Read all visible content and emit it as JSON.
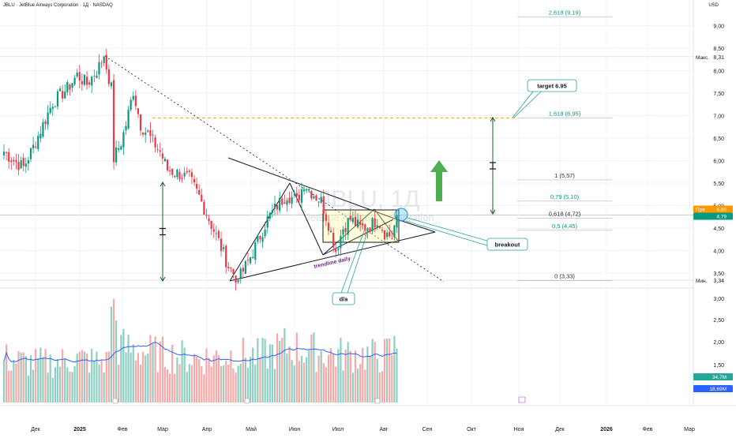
{
  "header": {
    "title": "JBLU · JetBlue Airways Corporation · 1Д · NASDAQ",
    "currency": "USD"
  },
  "watermark": {
    "symbol": "JBLU, 1Д",
    "name": "JetBlue Airways Corporation"
  },
  "price_scale": {
    "labels": [
      "9,00",
      "8,50",
      "8,00",
      "7,50",
      "7,00",
      "6,50",
      "6,00",
      "5,50",
      "5,00",
      "4,50",
      "4,00",
      "3,50"
    ],
    "max_label": "Макс.",
    "max_value": "8,31",
    "min_label": "Мин.",
    "min_value": "3,34",
    "prev_label": "Пре",
    "prev_value": "4,80",
    "last_value": "4,79"
  },
  "volume_scale": {
    "labels": [
      "3,00",
      "2,50",
      "2,00",
      "1,50"
    ],
    "vol_value": "34,7M",
    "ma_value": "18,69M"
  },
  "time_axis": {
    "labels": [
      "Дек",
      "2025",
      "Фев",
      "Мар",
      "Апр",
      "Май",
      "Июн",
      "Июл",
      "Авг",
      "Сен",
      "Окт",
      "Ноя",
      "Дек",
      "2026",
      "Фев",
      "Мар"
    ]
  },
  "fib_levels": [
    {
      "ratio": "2,618",
      "price": "9,19",
      "text": "2,618 (9,19)"
    },
    {
      "ratio": "1,618",
      "price": "6,95",
      "text": "1,618 (6,95)"
    },
    {
      "ratio": "1",
      "price": "5,57",
      "text": "1 (5,57)"
    },
    {
      "ratio": "0,79",
      "price": "5,10",
      "text": "0,79 (5,10)"
    },
    {
      "ratio": "0,618",
      "price": "4,72",
      "text": "0,618 (4,72)"
    },
    {
      "ratio": "0,5",
      "price": "4,45",
      "text": "0,5 (4,45)"
    },
    {
      "ratio": "0",
      "price": "3,33",
      "text": "0 (3,33)"
    }
  ],
  "annotations": {
    "target": "target 6.95",
    "breakout": "breakout",
    "trendline": "trendline daily",
    "da": "d/a"
  },
  "colors": {
    "up": "#089981",
    "down": "#f23645",
    "fib_green": "#089981",
    "fib_gray": "#2a2e39",
    "target_line": "#f7a600",
    "arrow": "#4caf50",
    "callout_border": "#26a69a",
    "volume_ma": "#2962ff",
    "price_tag": "#089981",
    "prev_tag": "#ff9800"
  },
  "chart_data": {
    "type": "candlestick",
    "price_range": [
      3.0,
      9.25
    ],
    "days": 177,
    "first_day": "2024-11-25",
    "anchors": [
      [
        0,
        6.2
      ],
      [
        4,
        6.0
      ],
      [
        8,
        5.85
      ],
      [
        12,
        6.3
      ],
      [
        16,
        6.8
      ],
      [
        20,
        7.3
      ],
      [
        26,
        7.6
      ],
      [
        30,
        7.9
      ],
      [
        34,
        7.7
      ],
      [
        38,
        8.0
      ],
      [
        41,
        8.31
      ],
      [
        44,
        7.6
      ],
      [
        45,
        6.05
      ],
      [
        48,
        6.4
      ],
      [
        50,
        6.8
      ],
      [
        53,
        7.55
      ],
      [
        56,
        6.8
      ],
      [
        60,
        6.5
      ],
      [
        64,
        6.2
      ],
      [
        67,
        5.8
      ],
      [
        72,
        5.7
      ],
      [
        76,
        5.6
      ],
      [
        80,
        5.2
      ],
      [
        84,
        4.7
      ],
      [
        88,
        4.2
      ],
      [
        92,
        3.65
      ],
      [
        96,
        3.34
      ],
      [
        100,
        3.75
      ],
      [
        104,
        4.2
      ],
      [
        108,
        4.7
      ],
      [
        112,
        5.0
      ],
      [
        116,
        5.25
      ],
      [
        120,
        5.1
      ],
      [
        123,
        5.5
      ],
      [
        126,
        5.3
      ],
      [
        130,
        5.1
      ],
      [
        133,
        4.6
      ],
      [
        136,
        4.0
      ],
      [
        139,
        4.5
      ],
      [
        142,
        4.7
      ],
      [
        146,
        4.5
      ],
      [
        150,
        4.55
      ],
      [
        153,
        4.7
      ],
      [
        156,
        4.4
      ],
      [
        159,
        4.3
      ],
      [
        161,
        4.79
      ]
    ],
    "volume_anchors": [
      [
        0,
        1.1
      ],
      [
        10,
        1.0
      ],
      [
        20,
        1.0
      ],
      [
        30,
        1.1
      ],
      [
        42,
        1.0
      ],
      [
        45,
        2.6
      ],
      [
        47,
        1.4
      ],
      [
        55,
        1.3
      ],
      [
        65,
        1.2
      ],
      [
        80,
        1.1
      ],
      [
        95,
        1.2
      ],
      [
        105,
        1.15
      ],
      [
        115,
        1.4
      ],
      [
        125,
        1.3
      ],
      [
        135,
        1.2
      ],
      [
        145,
        1.2
      ],
      [
        155,
        1.15
      ],
      [
        161,
        1.4
      ]
    ],
    "volume_range": [
      0,
      3.4
    ]
  }
}
